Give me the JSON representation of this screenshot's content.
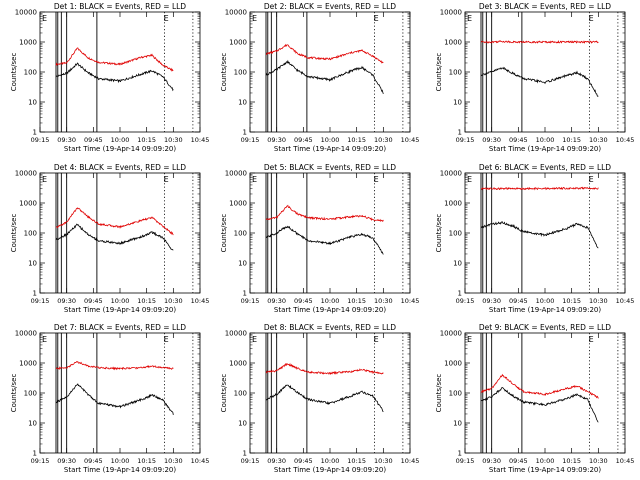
{
  "figure": {
    "xlabel": "Start Time (19-Apr-14 09:09:20)",
    "ylabel": "Counts/sec",
    "x_ticks": [
      "09:15",
      "09:30",
      "09:45",
      "10:00",
      "10:15",
      "10:30",
      "10:45"
    ],
    "y_ticks": [
      "1",
      "10",
      "100",
      "1000",
      "10000"
    ],
    "marker_left": "E",
    "marker_right": "E",
    "colors": {
      "events": "#000000",
      "lld": "#e00000",
      "axes": "#000000",
      "background": "#ffffff"
    }
  },
  "chart_data": [
    {
      "type": "line",
      "title": "Det 1: BLACK = Events, RED = LLD",
      "xlabel": "Start Time (19-Apr-14 09:09:20)",
      "ylabel": "Counts/sec",
      "x": [
        "09:24",
        "09:30",
        "09:36",
        "09:42",
        "09:48",
        "10:00",
        "10:12",
        "10:18",
        "10:24",
        "10:30"
      ],
      "series": [
        {
          "name": "Events",
          "values": [
            70,
            90,
            190,
            95,
            60,
            50,
            85,
            110,
            70,
            25
          ]
        },
        {
          "name": "LLD",
          "values": [
            180,
            200,
            620,
            300,
            210,
            180,
            310,
            360,
            170,
            110
          ]
        }
      ],
      "ylim": [
        1,
        10000
      ],
      "yscale": "log",
      "grid": false
    },
    {
      "type": "line",
      "title": "Det 2: BLACK = Events, RED = LLD",
      "xlabel": "Start Time (19-Apr-14 09:09:20)",
      "ylabel": "Counts/sec",
      "x": [
        "09:24",
        "09:30",
        "09:36",
        "09:42",
        "09:48",
        "10:00",
        "10:12",
        "10:18",
        "10:24",
        "10:30"
      ],
      "series": [
        {
          "name": "Events",
          "values": [
            80,
            120,
            220,
            110,
            70,
            55,
            110,
            140,
            80,
            20
          ]
        },
        {
          "name": "LLD",
          "values": [
            400,
            500,
            820,
            400,
            300,
            270,
            440,
            520,
            340,
            200
          ]
        }
      ],
      "ylim": [
        1,
        10000
      ],
      "yscale": "log",
      "grid": false
    },
    {
      "type": "line",
      "title": "Det 3: BLACK = Events, RED = LLD",
      "xlabel": "Start Time (19-Apr-14 09:09:20)",
      "ylabel": "Counts/sec",
      "x": [
        "09:24",
        "09:30",
        "09:36",
        "09:42",
        "09:48",
        "10:00",
        "10:12",
        "10:18",
        "10:24",
        "10:30"
      ],
      "series": [
        {
          "name": "Events",
          "values": [
            80,
            100,
            140,
            90,
            60,
            45,
            75,
            95,
            60,
            15
          ]
        },
        {
          "name": "LLD",
          "values": [
            1000,
            1000,
            1050,
            1000,
            1000,
            1000,
            1000,
            1000,
            1000,
            1000
          ]
        }
      ],
      "ylim": [
        1,
        10000
      ],
      "yscale": "log",
      "grid": false
    },
    {
      "type": "line",
      "title": "Det 4: BLACK = Events, RED = LLD",
      "xlabel": "Start Time (19-Apr-14 09:09:20)",
      "ylabel": "Counts/sec",
      "x": [
        "09:24",
        "09:30",
        "09:36",
        "09:42",
        "09:48",
        "10:00",
        "10:12",
        "10:18",
        "10:24",
        "10:30"
      ],
      "series": [
        {
          "name": "Events",
          "values": [
            60,
            90,
            190,
            90,
            55,
            45,
            75,
            105,
            70,
            25
          ]
        },
        {
          "name": "LLD",
          "values": [
            150,
            230,
            700,
            350,
            200,
            160,
            260,
            330,
            170,
            90
          ]
        }
      ],
      "ylim": [
        1,
        10000
      ],
      "yscale": "log",
      "grid": false
    },
    {
      "type": "line",
      "title": "Det 5: BLACK = Events, RED = LLD",
      "xlabel": "Start Time (19-Apr-14 09:09:20)",
      "ylabel": "Counts/sec",
      "x": [
        "09:24",
        "09:30",
        "09:36",
        "09:42",
        "09:48",
        "10:00",
        "10:12",
        "10:18",
        "10:24",
        "10:30"
      ],
      "series": [
        {
          "name": "Events",
          "values": [
            70,
            100,
            170,
            90,
            55,
            45,
            75,
            90,
            70,
            20
          ]
        },
        {
          "name": "LLD",
          "values": [
            280,
            330,
            800,
            420,
            320,
            290,
            350,
            370,
            280,
            260
          ]
        }
      ],
      "ylim": [
        1,
        10000
      ],
      "yscale": "log",
      "grid": false
    },
    {
      "type": "line",
      "title": "Det 6: BLACK = Events, RED = LLD",
      "xlabel": "Start Time (19-Apr-14 09:09:20)",
      "ylabel": "Counts/sec",
      "x": [
        "09:24",
        "09:30",
        "09:36",
        "09:42",
        "09:48",
        "10:00",
        "10:12",
        "10:18",
        "10:24",
        "10:30"
      ],
      "series": [
        {
          "name": "Events",
          "values": [
            150,
            200,
            220,
            170,
            110,
            85,
            140,
            200,
            150,
            30
          ]
        },
        {
          "name": "LLD",
          "values": [
            3000,
            3000,
            3000,
            3000,
            3000,
            3000,
            3100,
            3100,
            3100,
            3100
          ]
        }
      ],
      "ylim": [
        1,
        10000
      ],
      "yscale": "log",
      "grid": false
    },
    {
      "type": "line",
      "title": "Det 7: BLACK = Events, RED = LLD",
      "xlabel": "Start Time (19-Apr-14 09:09:20)",
      "ylabel": "Counts/sec",
      "x": [
        "09:24",
        "09:30",
        "09:36",
        "09:42",
        "09:48",
        "10:00",
        "10:12",
        "10:18",
        "10:24",
        "10:30"
      ],
      "series": [
        {
          "name": "Events",
          "values": [
            50,
            70,
            200,
            90,
            45,
            35,
            60,
            85,
            60,
            20
          ]
        },
        {
          "name": "LLD",
          "values": [
            650,
            700,
            1100,
            800,
            700,
            650,
            700,
            800,
            700,
            650
          ]
        }
      ],
      "ylim": [
        1,
        10000
      ],
      "yscale": "log",
      "grid": false
    },
    {
      "type": "line",
      "title": "Det 8: BLACK = Events, RED = LLD",
      "xlabel": "Start Time (19-Apr-14 09:09:20)",
      "ylabel": "Counts/sec",
      "x": [
        "09:24",
        "09:30",
        "09:36",
        "09:42",
        "09:48",
        "10:00",
        "10:12",
        "10:18",
        "10:24",
        "10:30"
      ],
      "series": [
        {
          "name": "Events",
          "values": [
            60,
            90,
            190,
            100,
            60,
            45,
            80,
            110,
            80,
            25
          ]
        },
        {
          "name": "LLD",
          "values": [
            500,
            550,
            950,
            650,
            500,
            450,
            520,
            600,
            500,
            450
          ]
        }
      ],
      "ylim": [
        1,
        10000
      ],
      "yscale": "log",
      "grid": false
    },
    {
      "type": "line",
      "title": "Det 9: BLACK = Events, RED = LLD",
      "xlabel": "Start Time (19-Apr-14 09:09:20)",
      "ylabel": "Counts/sec",
      "x": [
        "09:24",
        "09:30",
        "09:36",
        "09:42",
        "09:48",
        "10:00",
        "10:12",
        "10:18",
        "10:24",
        "10:30"
      ],
      "series": [
        {
          "name": "Events",
          "values": [
            55,
            75,
            150,
            80,
            50,
            40,
            65,
            90,
            60,
            10
          ]
        },
        {
          "name": "LLD",
          "values": [
            110,
            140,
            400,
            200,
            110,
            90,
            140,
            170,
            110,
            70
          ]
        }
      ],
      "ylim": [
        1,
        10000
      ],
      "yscale": "log",
      "grid": false
    }
  ]
}
